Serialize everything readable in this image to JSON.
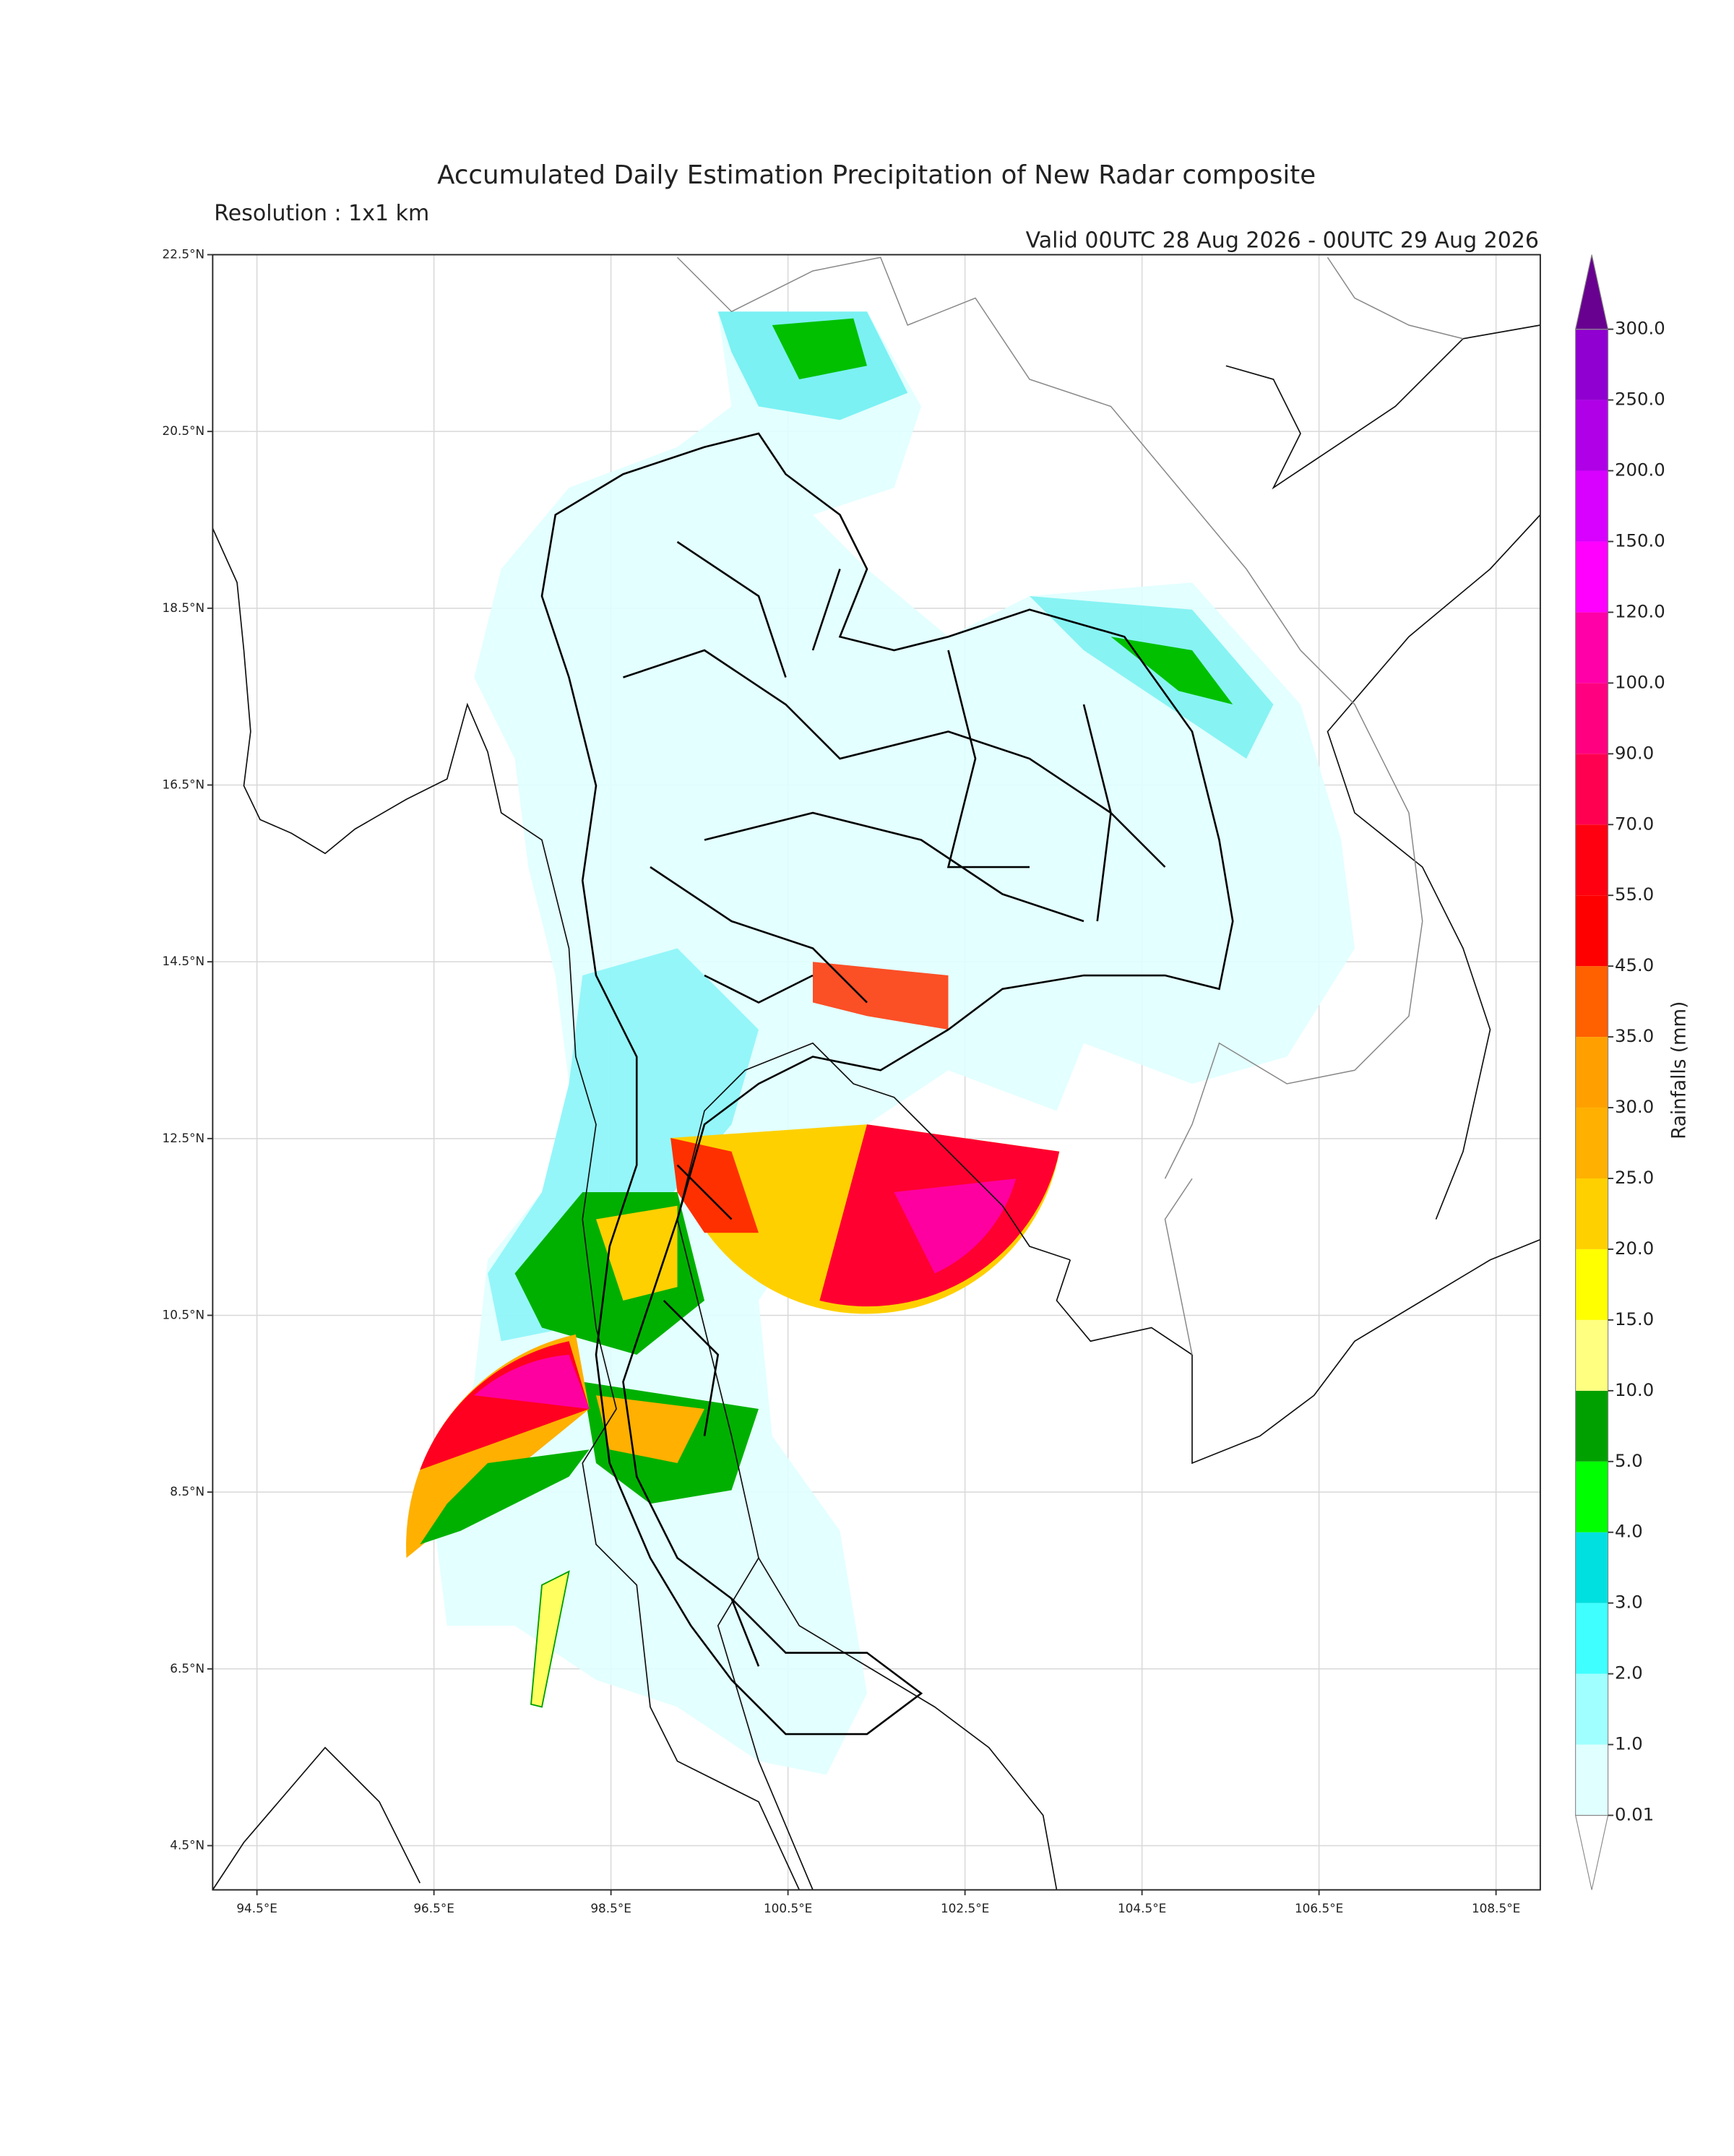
{
  "chart_data": {
    "type": "map",
    "title": "Accumulated Daily Estimation Precipitation of New Radar composite",
    "subtitle": "Resolution : 1x1 km",
    "annotation": "Valid 00UTC 28 Aug 2026 - 00UTC 29 Aug 2026",
    "xlim": [
      94,
      109
    ],
    "ylim": [
      4,
      22.5
    ],
    "xticks": [
      {
        "value": 94.5,
        "label": "94.5°E"
      },
      {
        "value": 96.5,
        "label": "96.5°E"
      },
      {
        "value": 98.5,
        "label": "98.5°E"
      },
      {
        "value": 100.5,
        "label": "100.5°E"
      },
      {
        "value": 102.5,
        "label": "102.5°E"
      },
      {
        "value": 104.5,
        "label": "104.5°E"
      },
      {
        "value": 106.5,
        "label": "106.5°E"
      },
      {
        "value": 108.5,
        "label": "108.5°E"
      }
    ],
    "yticks": [
      {
        "value": 4.5,
        "label": "4.5°N"
      },
      {
        "value": 6.5,
        "label": "6.5°N"
      },
      {
        "value": 8.5,
        "label": "8.5°N"
      },
      {
        "value": 10.5,
        "label": "10.5°N"
      },
      {
        "value": 12.5,
        "label": "12.5°N"
      },
      {
        "value": 14.5,
        "label": "14.5°N"
      },
      {
        "value": 16.5,
        "label": "16.5°N"
      },
      {
        "value": 18.5,
        "label": "18.5°N"
      },
      {
        "value": 20.5,
        "label": "20.5°N"
      },
      {
        "value": 22.5,
        "label": "22.5°N"
      }
    ],
    "grid": true,
    "colorbar": {
      "label": "Rainfalls (mm)",
      "levels": [
        0.01,
        {
          "value": 1,
          "label": "1.0"
        },
        {
          "value": 2,
          "label": "2.0"
        },
        {
          "value": 3,
          "label": "3.0"
        },
        {
          "value": 4,
          "label": "4.0"
        },
        {
          "value": 5,
          "label": "5.0"
        },
        {
          "value": 10,
          "label": "10.0"
        },
        {
          "value": 15,
          "label": "15.0"
        },
        {
          "value": 20,
          "label": "20.0"
        },
        {
          "value": 25,
          "label": "25.0"
        },
        {
          "value": 30,
          "label": "30.0"
        },
        {
          "value": 35,
          "label": "35.0"
        },
        {
          "value": 45,
          "label": "45.0"
        },
        {
          "value": 55,
          "label": "55.0"
        },
        {
          "value": 70,
          "label": "70.0"
        },
        {
          "value": 90,
          "label": "90.0"
        },
        {
          "value": 100,
          "label": "100.0"
        },
        {
          "value": 120,
          "label": "120.0"
        },
        {
          "value": 150,
          "label": "150.0"
        },
        {
          "value": 200,
          "label": "200.0"
        },
        {
          "value": 250,
          "label": "250.0"
        },
        {
          "value": 300,
          "label": "300.0"
        }
      ],
      "colors": [
        "#e0ffff",
        "#a0ffff",
        "#40ffff",
        "#00e0e0",
        "#00ff00",
        "#00a000",
        "#ffff80",
        "#ffff00",
        "#ffd000",
        "#ffb000",
        "#ffa000",
        "#ff6000",
        "#ff0000",
        "#ff0010",
        "#ff0050",
        "#ff0080",
        "#ff00a8",
        "#ff00ff",
        "#d800ff",
        "#b000e8",
        "#9000d0"
      ],
      "extend_min_color": "#ffffff",
      "extend_max_color": "#680090"
    }
  }
}
